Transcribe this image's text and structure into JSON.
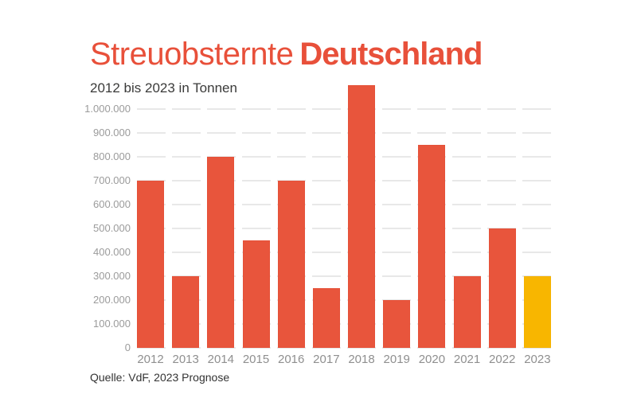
{
  "header": {
    "title_main": "Streuobsternte",
    "title_accent": "Deutschland",
    "subtitle": "2012 bis 2023 in Tonnen"
  },
  "footer": {
    "source": "Quelle: VdF, 2023 Prognose"
  },
  "colors": {
    "accent_red": "#E8503A",
    "bar_red": "#E8553C",
    "bar_red_edge": "#DD4831",
    "highlight_yellow": "#F8B600",
    "highlight_yellow_edge": "#EAA900",
    "grid": "#E8E8E8",
    "axis_text": "#9B9B9B",
    "dark_text": "#3A3A39"
  },
  "chart_data": {
    "type": "bar",
    "title": "Streuobsternte Deutschland",
    "subtitle": "2012 bis 2023 in Tonnen",
    "xlabel": "",
    "ylabel": "Tonnen",
    "categories": [
      "2012",
      "2013",
      "2014",
      "2015",
      "2016",
      "2017",
      "2018",
      "2019",
      "2020",
      "2021",
      "2022",
      "2023"
    ],
    "values": [
      700000,
      300000,
      800000,
      450000,
      700000,
      250000,
      1100000,
      200000,
      850000,
      300000,
      500000,
      300000
    ],
    "highlight_index": 11,
    "highlight_note": "2023 Prognose",
    "ylim": [
      0,
      1000000
    ],
    "ytick_step": 100000,
    "ytick_labels": [
      "0",
      "100.000",
      "200.000",
      "300.000",
      "400.000",
      "500.000",
      "600.000",
      "700.000",
      "800.000",
      "900.000",
      "1.000.000"
    ],
    "grid": "horizontal-dashed",
    "legend": "none"
  }
}
